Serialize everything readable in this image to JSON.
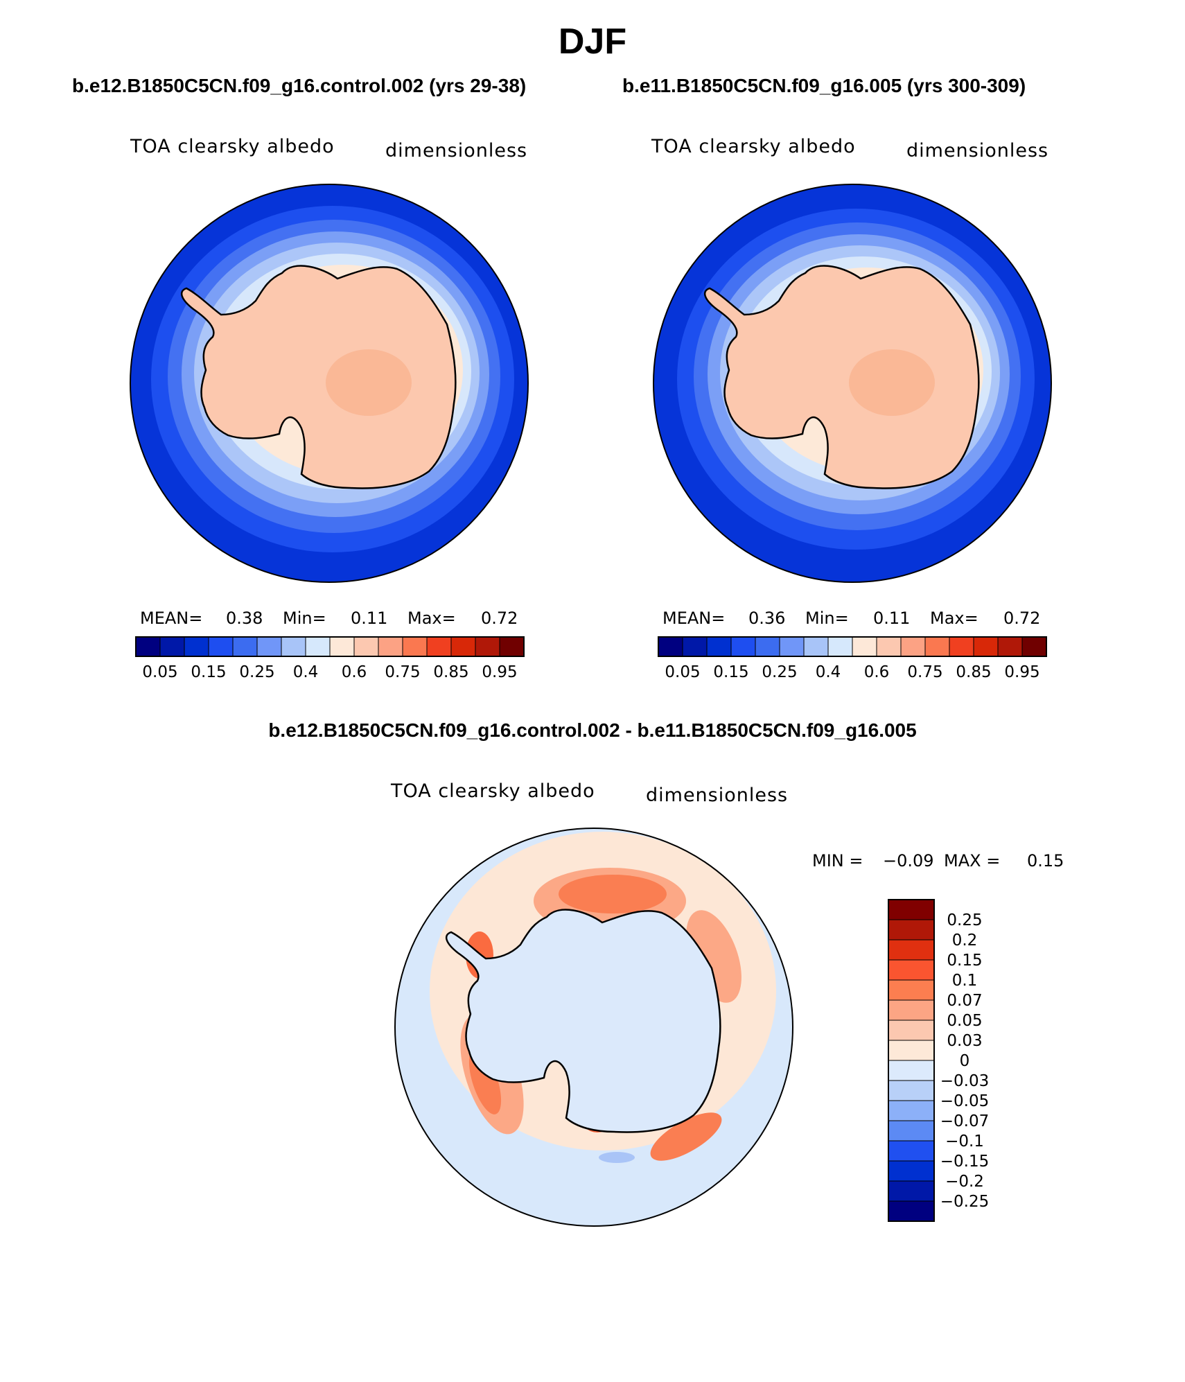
{
  "title": "DJF",
  "panels": [
    {
      "case": "b.e12.B1850C5CN.f09_g16.control.002 (yrs 29-38)",
      "variable": "TOA clearsky albedo",
      "units": "dimensionless",
      "mean_label": "MEAN=",
      "mean": "0.38",
      "min_label": "Min=",
      "min": "0.11",
      "max_label": "Max=",
      "max": "0.72"
    },
    {
      "case": "b.e11.B1850C5CN.f09_g16.005 (yrs 300-309)",
      "variable": "TOA clearsky albedo",
      "units": "dimensionless",
      "mean_label": "MEAN=",
      "mean": "0.36",
      "min_label": "Min=",
      "min": "0.11",
      "max_label": "Max=",
      "max": "0.72"
    }
  ],
  "difference": {
    "title": "b.e12.B1850C5CN.f09_g16.control.002 - b.e11.B1850C5CN.f09_g16.005",
    "variable": "TOA clearsky albedo",
    "units": "dimensionless",
    "min_label": "MIN =",
    "min": "−0.09",
    "max_label": "MAX =",
    "max": "0.15"
  },
  "abs_colorbar": {
    "colors": [
      "#000080",
      "#0018a8",
      "#0030d0",
      "#1e4ef0",
      "#3c6cf0",
      "#7096f8",
      "#a8c4f8",
      "#d6e8fc",
      "#fde8d8",
      "#fcc8b0",
      "#fca284",
      "#fa7850",
      "#f04020",
      "#d82808",
      "#b01808",
      "#700000"
    ],
    "labels": [
      "0.05",
      "0.15",
      "0.25",
      "0.4",
      "0.6",
      "0.75",
      "0.85",
      "0.95"
    ]
  },
  "diff_colorbar": {
    "colors_top_to_bottom": [
      "#800000",
      "#b01808",
      "#e03010",
      "#fa5530",
      "#fc7e50",
      "#fca584",
      "#fcc8b0",
      "#fde9d8",
      "#dceafc",
      "#b8d0f8",
      "#8cb0f8",
      "#5c8af4",
      "#2050f0",
      "#0030d0",
      "#0018a8",
      "#000080"
    ],
    "labels": [
      "0.25",
      "0.2",
      "0.15",
      "0.1",
      "0.07",
      "0.05",
      "0.03",
      "0",
      "−0.03",
      "−0.05",
      "−0.07",
      "−0.1",
      "−0.15",
      "−0.2",
      "−0.25"
    ]
  }
}
